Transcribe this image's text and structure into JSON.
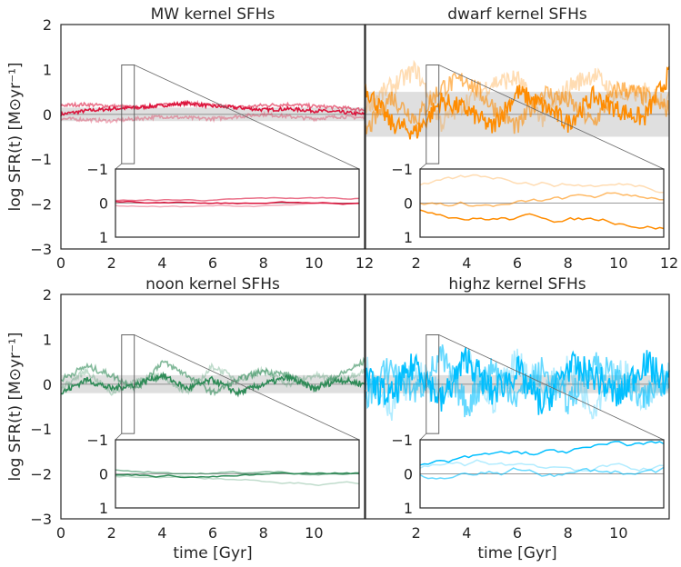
{
  "chart_data": [
    {
      "type": "line",
      "title": "MW kernel SFHs",
      "ylabel": "log SFR(t) [M⊙yr⁻¹]",
      "xlim": [
        0,
        12
      ],
      "ylim": [
        -3,
        2
      ],
      "xticks": [
        "0",
        "2",
        "4",
        "6",
        "8",
        "10",
        "12"
      ],
      "yticks": [
        "−3",
        "−2",
        "−1",
        "0",
        "1",
        "2"
      ],
      "band": [
        -0.15,
        0.15
      ],
      "inset": {
        "x_range": [
          2.4,
          2.9
        ],
        "ylim": [
          -1,
          1
        ],
        "yticks": [
          "−1",
          "0",
          "1"
        ]
      },
      "series": [
        {
          "color": "#dc143c",
          "opacity": 1.0,
          "values": [
            0.0,
            0.08,
            0.12,
            0.15,
            0.2,
            0.25,
            0.18,
            0.15,
            0.1,
            0.12,
            0.08,
            0.05,
            0.0
          ]
        },
        {
          "color": "#dc143c",
          "opacity": 0.6,
          "values": [
            0.2,
            0.22,
            0.18,
            0.15,
            0.2,
            0.25,
            0.2,
            0.15,
            0.2,
            0.22,
            0.18,
            0.15,
            0.1
          ]
        },
        {
          "color": "#dc143c",
          "opacity": 0.35,
          "values": [
            -0.1,
            -0.12,
            -0.15,
            -0.1,
            -0.05,
            -0.08,
            -0.1,
            -0.05,
            0.0,
            -0.05,
            -0.1,
            -0.05,
            -0.08
          ]
        }
      ]
    },
    {
      "type": "line",
      "title": "dwarf kernel SFHs",
      "xlim": [
        0,
        12
      ],
      "ylim": [
        -3,
        2
      ],
      "xticks": [
        "2",
        "4",
        "6",
        "8",
        "10",
        "12"
      ],
      "band": [
        -0.5,
        0.5
      ],
      "inset": {
        "x_range": [
          2.4,
          2.9
        ],
        "ylim": [
          -1,
          1
        ],
        "yticks": [
          "−1",
          "0",
          "1"
        ]
      },
      "series": [
        {
          "color": "#ff8c00",
          "opacity": 1.0,
          "values": [
            0.6,
            -0.2,
            -0.4,
            0.3,
            0.1,
            -0.3,
            0.5,
            0.2,
            -0.2,
            0.4,
            0.1,
            -0.1,
            0.9
          ]
        },
        {
          "color": "#ff8c00",
          "opacity": 0.6,
          "values": [
            -0.4,
            0.4,
            -0.1,
            0.6,
            0.8,
            0.2,
            -0.3,
            0.5,
            0.3,
            -0.2,
            0.6,
            0.4,
            0.1
          ]
        },
        {
          "color": "#ff8c00",
          "opacity": 0.3,
          "values": [
            0.2,
            0.6,
            1.0,
            -0.2,
            0.3,
            0.7,
            0.8,
            -0.1,
            0.6,
            0.9,
            0.4,
            0.5,
            0.3
          ]
        }
      ]
    },
    {
      "type": "line",
      "title": "noon kernel SFHs",
      "xlabel": "time [Gyr]",
      "ylabel": "log SFR(t) [M⊙yr⁻¹]",
      "xlim": [
        0,
        12
      ],
      "ylim": [
        -3,
        2
      ],
      "xticks": [
        "0",
        "2",
        "4",
        "6",
        "8",
        "10"
      ],
      "yticks": [
        "−3",
        "−2",
        "−1",
        "0",
        "1",
        "2"
      ],
      "band": [
        -0.2,
        0.2
      ],
      "inset": {
        "x_range": [
          2.4,
          2.9
        ],
        "ylim": [
          -1,
          1
        ],
        "yticks": [
          "−1",
          "0",
          "1"
        ]
      },
      "series": [
        {
          "color": "#2e8b57",
          "opacity": 1.0,
          "values": [
            -0.2,
            0.1,
            -0.1,
            0.0,
            0.2,
            -0.1,
            0.1,
            -0.2,
            0.0,
            0.15,
            -0.1,
            0.1,
            0.0
          ]
        },
        {
          "color": "#2e8b57",
          "opacity": 0.6,
          "values": [
            0.1,
            0.4,
            0.2,
            -0.1,
            0.5,
            0.2,
            -0.2,
            0.1,
            0.3,
            0.2,
            -0.1,
            0.2,
            0.5
          ]
        },
        {
          "color": "#2e8b57",
          "opacity": 0.3,
          "values": [
            -0.1,
            0.3,
            -0.2,
            0.1,
            0.2,
            -0.2,
            0.4,
            0.1,
            0.3,
            0.0,
            0.2,
            0.1,
            0.3
          ]
        }
      ]
    },
    {
      "type": "line",
      "title": "highz kernel SFHs",
      "xlabel": "time [Gyr]",
      "xlim": [
        0,
        12
      ],
      "ylim": [
        -3,
        2
      ],
      "xticks": [
        "2",
        "4",
        "6",
        "8",
        "10"
      ],
      "band": [
        -0.2,
        0.2
      ],
      "inset": {
        "x_range": [
          2.4,
          2.9
        ],
        "ylim": [
          -1,
          1
        ],
        "yticks": [
          "−1",
          "0",
          "1"
        ]
      },
      "series": [
        {
          "color": "#00bfff",
          "opacity": 1.0,
          "values": [
            0.1,
            -0.3,
            0.5,
            -0.4,
            0.6,
            -0.2,
            0.3,
            -0.5,
            0.4,
            0.2,
            -0.3,
            0.5,
            0.0
          ]
        },
        {
          "color": "#00bfff",
          "opacity": 0.6,
          "values": [
            -0.3,
            0.4,
            -0.2,
            0.6,
            -0.5,
            0.4,
            -0.3,
            0.3,
            -0.4,
            0.5,
            0.1,
            -0.4,
            0.3
          ]
        },
        {
          "color": "#00bfff",
          "opacity": 0.3,
          "values": [
            0.4,
            -0.5,
            0.3,
            -0.3,
            0.5,
            -0.4,
            0.6,
            -0.2,
            0.3,
            -0.5,
            0.4,
            -0.3,
            0.2
          ]
        }
      ]
    }
  ]
}
